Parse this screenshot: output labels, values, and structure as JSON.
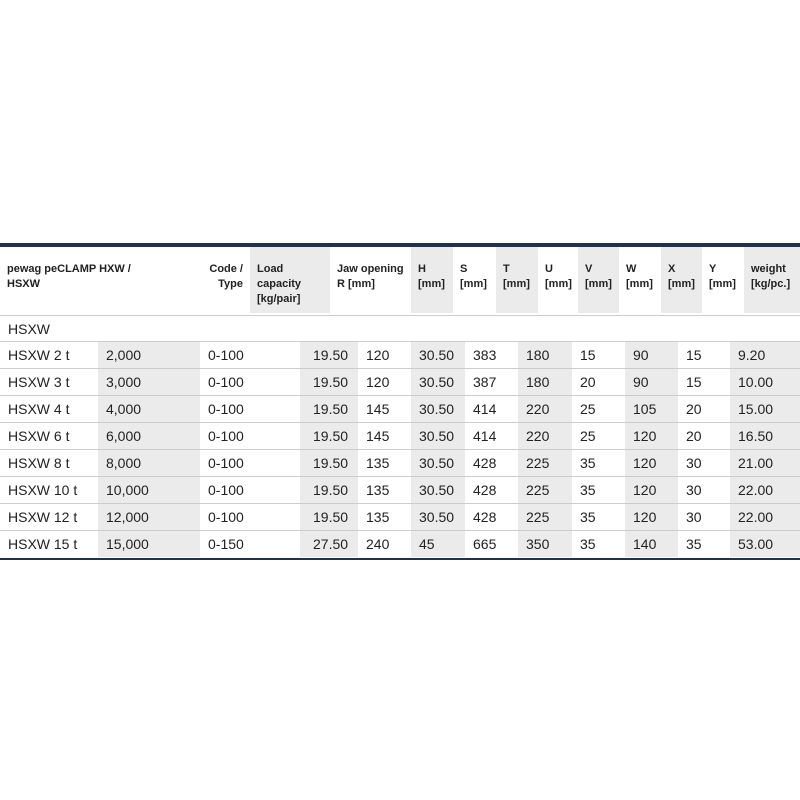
{
  "table": {
    "header": [
      "pewag peCLAMP HXW / HSXW",
      "Code / Type",
      "Load capacity [kg/pair]",
      "Jaw opening R [mm]",
      "H [mm]",
      "S [mm]",
      "T [mm]",
      "U [mm]",
      "V [mm]",
      "W [mm]",
      "X [mm]",
      "Y [mm]",
      "weight [kg/pc.]"
    ],
    "section": "HSXW",
    "rows": [
      [
        "HSXW 2 t",
        "2,000",
        "0-100",
        "19.50",
        "120",
        "30.50",
        "383",
        "180",
        "15",
        "90",
        "15",
        "9.20"
      ],
      [
        "HSXW 3 t",
        "3,000",
        "0-100",
        "19.50",
        "120",
        "30.50",
        "387",
        "180",
        "20",
        "90",
        "15",
        "10.00"
      ],
      [
        "HSXW 4 t",
        "4,000",
        "0-100",
        "19.50",
        "145",
        "30.50",
        "414",
        "220",
        "25",
        "105",
        "20",
        "15.00"
      ],
      [
        "HSXW 6 t",
        "6,000",
        "0-100",
        "19.50",
        "145",
        "30.50",
        "414",
        "220",
        "25",
        "120",
        "20",
        "16.50"
      ],
      [
        "HSXW 8 t",
        "8,000",
        "0-100",
        "19.50",
        "135",
        "30.50",
        "428",
        "225",
        "35",
        "120",
        "30",
        "21.00"
      ],
      [
        "HSXW 10 t",
        "10,000",
        "0-100",
        "19.50",
        "135",
        "30.50",
        "428",
        "225",
        "35",
        "120",
        "30",
        "22.00"
      ],
      [
        "HSXW 12 t",
        "12,000",
        "0-100",
        "19.50",
        "135",
        "30.50",
        "428",
        "225",
        "35",
        "120",
        "30",
        "22.00"
      ],
      [
        "HSXW 15 t",
        "15,000",
        "0-150",
        "27.50",
        "240",
        "45",
        "665",
        "350",
        "35",
        "140",
        "35",
        "53.00"
      ]
    ]
  }
}
